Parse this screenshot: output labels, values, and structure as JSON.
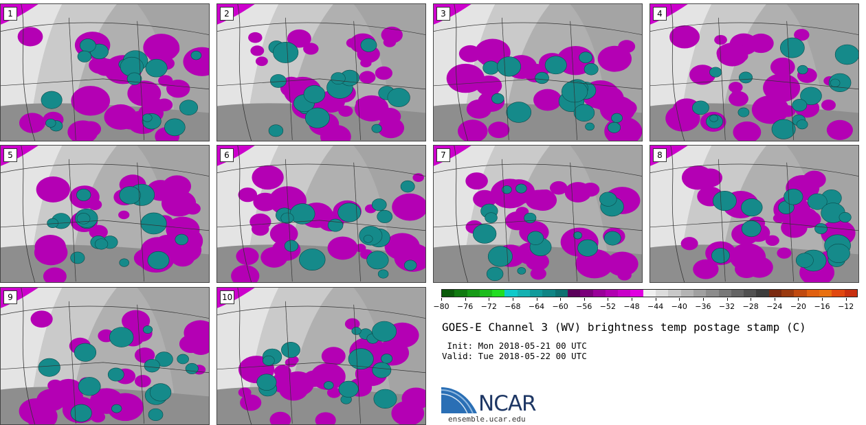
{
  "figure": {
    "title": "GOES-E Channel 3 (WV) brightness temp postage stamp (C)",
    "init": " Init: Mon 2018-05-21 00 UTC",
    "valid": "Valid: Tue 2018-05-22 00 UTC",
    "org": "NCAR",
    "url": "ensemble.ucar.edu"
  },
  "panels": [
    {
      "label": "1"
    },
    {
      "label": "2"
    },
    {
      "label": "3"
    },
    {
      "label": "4"
    },
    {
      "label": "5"
    },
    {
      "label": "6"
    },
    {
      "label": "7"
    },
    {
      "label": "8"
    },
    {
      "label": "9"
    },
    {
      "label": "10"
    }
  ],
  "colorbar": {
    "tick_labels": [
      "−80",
      "−76",
      "−72",
      "−68",
      "−64",
      "−60",
      "−56",
      "−52",
      "−48",
      "−44",
      "−40",
      "−36",
      "−32",
      "−28",
      "−24",
      "−20",
      "−16",
      "−12"
    ],
    "min": -80,
    "max": -10,
    "colors": [
      "#0a5a0a",
      "#107a10",
      "#169a16",
      "#1cbc1c",
      "#22dd22",
      "#0fc9c9",
      "#15b1b1",
      "#119a9a",
      "#0f8585",
      "#0d7070",
      "#5a005a",
      "#7a007a",
      "#990099",
      "#b000b0",
      "#c800c8",
      "#e000e0",
      "#f0f0f0",
      "#dcdcdc",
      "#c8c8c8",
      "#b4b4b4",
      "#a0a0a0",
      "#8c8c8c",
      "#787878",
      "#646464",
      "#505050",
      "#3c3c3c",
      "#7a2a10",
      "#9a3a10",
      "#c04a10",
      "#e06010",
      "#e87010",
      "#e04810",
      "#c83010"
    ]
  }
}
